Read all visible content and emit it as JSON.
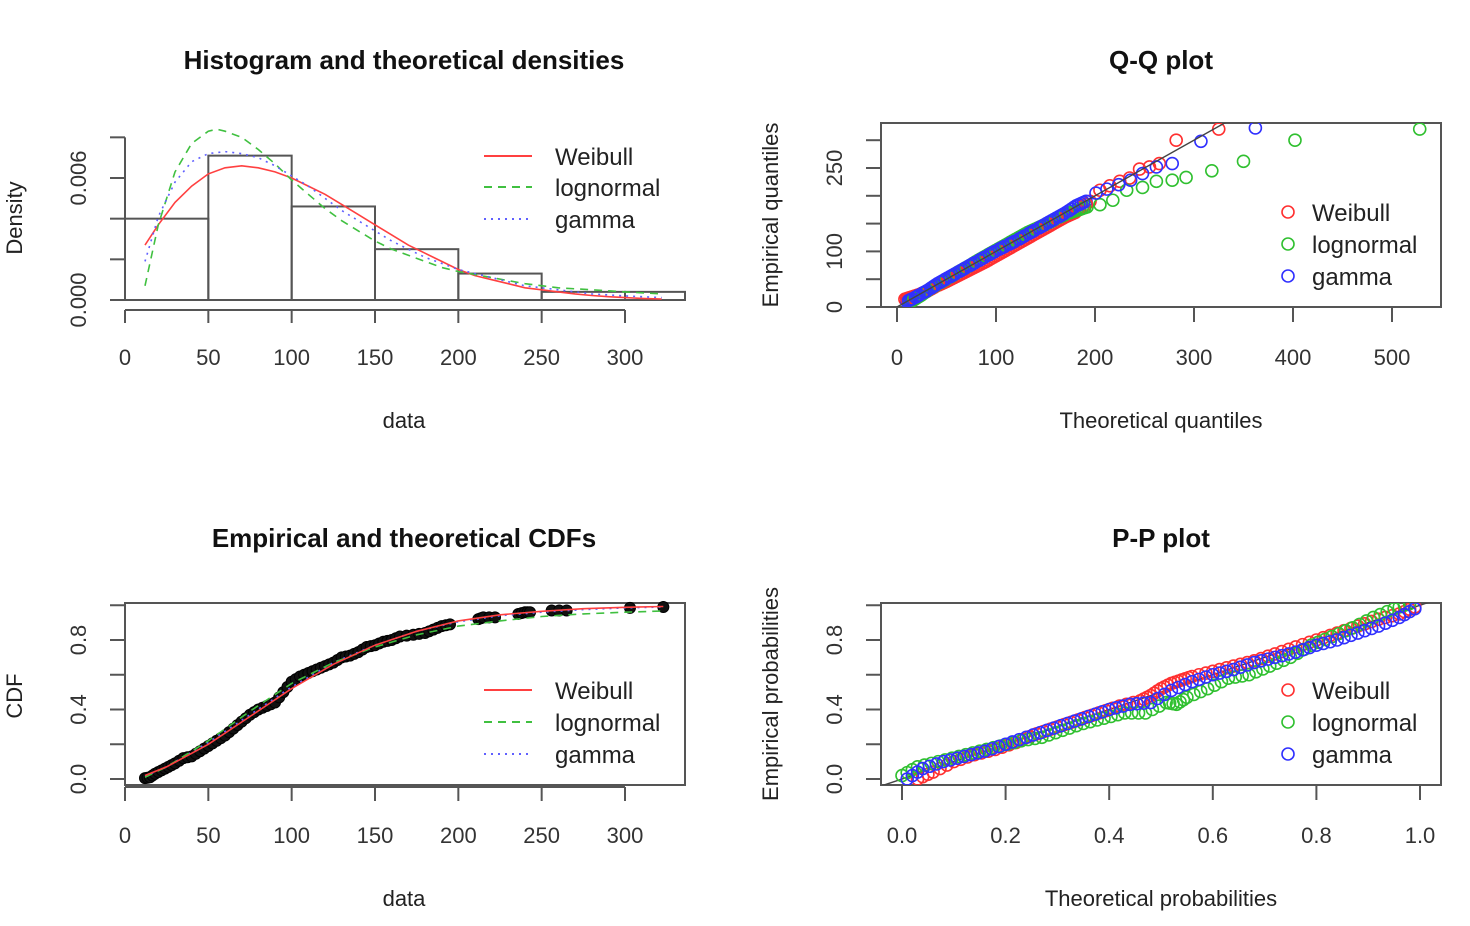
{
  "chart_data": [
    {
      "id": "hist",
      "type": "bar",
      "title": "Histogram and theoretical densities",
      "xlabel": "data",
      "ylabel": "Density",
      "xlim": [
        0,
        335
      ],
      "ylim": [
        0,
        0.008
      ],
      "xticks": [
        0,
        50,
        100,
        150,
        200,
        250,
        300
      ],
      "xtick_labels": [
        "0",
        "50",
        "100",
        "150",
        "200",
        "250",
        "300"
      ],
      "yticks": [
        0,
        0.002,
        0.004,
        0.006,
        0.008
      ],
      "ytick_labels": [
        "0.000",
        "",
        "",
        "0.006",
        ""
      ],
      "bins": [
        [
          0,
          50
        ],
        [
          50,
          100
        ],
        [
          100,
          150
        ],
        [
          150,
          200
        ],
        [
          200,
          250
        ],
        [
          250,
          300
        ],
        [
          300,
          350
        ]
      ],
      "values": [
        0.004,
        0.0071,
        0.0046,
        0.0025,
        0.0013,
        0.0004,
        0.0004
      ],
      "curves": [
        {
          "name": "Weibull",
          "color": "#ff4040",
          "style": "solid",
          "x": [
            12,
            20,
            30,
            40,
            50,
            60,
            70,
            80,
            90,
            100,
            110,
            120,
            130,
            140,
            150,
            160,
            170,
            180,
            190,
            200,
            210,
            220,
            230,
            240,
            250,
            260,
            270,
            280,
            290,
            300,
            310,
            322
          ],
          "y": [
            0.0027,
            0.0037,
            0.0048,
            0.0056,
            0.0062,
            0.0065,
            0.0066,
            0.0065,
            0.0063,
            0.006,
            0.0056,
            0.0052,
            0.0047,
            0.0042,
            0.0037,
            0.0032,
            0.0027,
            0.0023,
            0.0019,
            0.0015,
            0.0012,
            0.001,
            0.0008,
            0.0006,
            0.0005,
            0.0004,
            0.0003,
            0.00022,
            0.00016,
            0.00012,
            8e-05,
            5e-05
          ]
        },
        {
          "name": "lognormal",
          "color": "#40c040",
          "style": "dashed",
          "x": [
            12,
            20,
            30,
            40,
            50,
            55,
            60,
            70,
            80,
            90,
            100,
            110,
            120,
            130,
            140,
            150,
            160,
            170,
            180,
            190,
            200,
            220,
            240,
            260,
            280,
            300,
            322
          ],
          "y": [
            0.0007,
            0.0037,
            0.0063,
            0.0077,
            0.0083,
            0.0084,
            0.0083,
            0.008,
            0.0074,
            0.0067,
            0.0059,
            0.0052,
            0.0045,
            0.0039,
            0.0034,
            0.0029,
            0.0025,
            0.0022,
            0.0019,
            0.0016,
            0.0014,
            0.0011,
            0.0008,
            0.0006,
            0.0005,
            0.0004,
            0.0003
          ]
        },
        {
          "name": "gamma",
          "color": "#6060ff",
          "style": "dotted",
          "x": [
            12,
            20,
            30,
            40,
            50,
            60,
            70,
            80,
            90,
            100,
            110,
            120,
            130,
            140,
            150,
            160,
            170,
            180,
            190,
            200,
            220,
            240,
            260,
            280,
            300,
            322
          ],
          "y": [
            0.0019,
            0.0041,
            0.0058,
            0.0068,
            0.0072,
            0.0073,
            0.0072,
            0.007,
            0.0066,
            0.0061,
            0.0056,
            0.005,
            0.0044,
            0.0039,
            0.0034,
            0.0029,
            0.0025,
            0.0021,
            0.0018,
            0.0015,
            0.0011,
            0.0007,
            0.0005,
            0.0003,
            0.0002,
            0.00012
          ]
        }
      ],
      "legend": {
        "position": "top-right",
        "entries": [
          "Weibull",
          "lognormal",
          "gamma"
        ]
      }
    },
    {
      "id": "qq",
      "type": "scatter",
      "title": "Q-Q plot",
      "xlabel": "Theoretical quantiles",
      "ylabel": "Empirical quantiles",
      "xlim": [
        -8,
        550
      ],
      "ylim": [
        0,
        330
      ],
      "xticks": [
        0,
        100,
        200,
        300,
        400,
        500
      ],
      "xtick_labels": [
        "0",
        "100",
        "200",
        "300",
        "400",
        "500"
      ],
      "yticks": [
        0,
        50,
        100,
        150,
        200,
        250,
        300
      ],
      "ytick_labels": [
        "0",
        "",
        "100",
        "",
        "",
        "250",
        ""
      ],
      "reference_line": "y = x",
      "series": [
        {
          "name": "Weibull",
          "color": "#ff3030",
          "x": [
            8,
            15,
            22,
            30,
            40,
            50,
            60,
            70,
            80,
            90,
            100,
            110,
            120,
            130,
            140,
            150,
            160,
            170,
            180,
            195,
            205,
            215,
            225,
            235,
            245,
            255,
            265,
            282,
            325
          ],
          "y": [
            14,
            18,
            22,
            28,
            38,
            46,
            55,
            64,
            73,
            82,
            92,
            102,
            112,
            122,
            132,
            142,
            152,
            162,
            170,
            190,
            210,
            218,
            226,
            232,
            248,
            252,
            258,
            300,
            320
          ]
        },
        {
          "name": "lognormal",
          "color": "#30c030",
          "x": [
            12,
            18,
            25,
            33,
            42,
            52,
            62,
            72,
            82,
            92,
            102,
            112,
            122,
            132,
            142,
            152,
            162,
            172,
            182,
            192,
            205,
            218,
            232,
            248,
            262,
            278,
            292,
            318,
            350,
            402,
            528
          ],
          "y": [
            8,
            14,
            22,
            32,
            42,
            52,
            63,
            73,
            84,
            94,
            104,
            114,
            124,
            134,
            142,
            150,
            160,
            168,
            174,
            180,
            184,
            192,
            210,
            215,
            226,
            228,
            233,
            245,
            262,
            300,
            320
          ]
        },
        {
          "name": "gamma",
          "color": "#3030ff",
          "x": [
            10,
            17,
            24,
            32,
            41,
            51,
            61,
            71,
            81,
            91,
            101,
            111,
            121,
            131,
            141,
            151,
            161,
            171,
            181,
            191,
            201,
            212,
            224,
            236,
            248,
            262,
            278,
            307,
            362
          ],
          "y": [
            10,
            16,
            23,
            31,
            42,
            52,
            62,
            72,
            82,
            92,
            102,
            111,
            120,
            130,
            140,
            150,
            160,
            170,
            182,
            190,
            205,
            212,
            220,
            228,
            240,
            252,
            258,
            298,
            322
          ]
        }
      ],
      "legend": {
        "position": "right",
        "entries": [
          "Weibull",
          "lognormal",
          "gamma"
        ]
      }
    },
    {
      "id": "cdf",
      "type": "line",
      "title": "Empirical and theoretical CDFs",
      "xlabel": "data",
      "ylabel": "CDF",
      "xlim": [
        0,
        335
      ],
      "ylim": [
        -0.02,
        1.02
      ],
      "xticks": [
        0,
        50,
        100,
        150,
        200,
        250,
        300
      ],
      "xtick_labels": [
        "0",
        "50",
        "100",
        "150",
        "200",
        "250",
        "300"
      ],
      "yticks": [
        0,
        0.2,
        0.4,
        0.6,
        0.8,
        1.0
      ],
      "ytick_labels": [
        "0.0",
        "",
        "0.4",
        "",
        "0.8",
        ""
      ],
      "empirical": {
        "x": [
          12,
          15,
          18,
          22,
          26,
          30,
          35,
          40,
          45,
          50,
          55,
          60,
          65,
          70,
          75,
          80,
          85,
          90,
          95,
          100,
          105,
          110,
          115,
          120,
          125,
          130,
          135,
          140,
          145,
          150,
          155,
          160,
          165,
          173,
          180,
          185,
          190,
          195,
          212,
          215,
          222,
          236,
          240,
          243,
          256,
          265,
          303,
          323
        ],
        "y": [
          0.005,
          0.01,
          0.03,
          0.05,
          0.07,
          0.09,
          0.12,
          0.13,
          0.16,
          0.19,
          0.22,
          0.25,
          0.29,
          0.33,
          0.37,
          0.4,
          0.42,
          0.44,
          0.5,
          0.56,
          0.59,
          0.61,
          0.63,
          0.65,
          0.67,
          0.7,
          0.71,
          0.73,
          0.76,
          0.77,
          0.79,
          0.8,
          0.82,
          0.83,
          0.84,
          0.86,
          0.88,
          0.89,
          0.92,
          0.93,
          0.93,
          0.95,
          0.96,
          0.96,
          0.97,
          0.97,
          0.985,
          0.99
        ]
      },
      "curves": [
        {
          "name": "Weibull",
          "color": "#ff4040",
          "style": "solid",
          "x": [
            12,
            25,
            50,
            75,
            100,
            125,
            150,
            175,
            200,
            225,
            250,
            275,
            300,
            323
          ],
          "y": [
            0.02,
            0.07,
            0.2,
            0.36,
            0.52,
            0.66,
            0.77,
            0.85,
            0.91,
            0.945,
            0.965,
            0.98,
            0.988,
            0.993
          ]
        },
        {
          "name": "lognormal",
          "color": "#40c040",
          "style": "dashed",
          "x": [
            12,
            25,
            50,
            75,
            100,
            125,
            150,
            175,
            200,
            225,
            250,
            275,
            300,
            323
          ],
          "y": [
            0.01,
            0.07,
            0.22,
            0.39,
            0.55,
            0.67,
            0.76,
            0.83,
            0.88,
            0.91,
            0.935,
            0.95,
            0.96,
            0.967
          ]
        },
        {
          "name": "gamma",
          "color": "#6060ff",
          "style": "dotted",
          "x": [
            12,
            25,
            50,
            75,
            100,
            125,
            150,
            175,
            200,
            225,
            250,
            275,
            300,
            323
          ],
          "y": [
            0.015,
            0.07,
            0.21,
            0.37,
            0.53,
            0.67,
            0.77,
            0.85,
            0.905,
            0.94,
            0.96,
            0.975,
            0.985,
            0.99
          ]
        }
      ],
      "legend": {
        "position": "bottom-right",
        "entries": [
          "Weibull",
          "lognormal",
          "gamma"
        ]
      }
    },
    {
      "id": "pp",
      "type": "scatter",
      "title": "P-P plot",
      "xlabel": "Theoretical probabilities",
      "ylabel": "Empirical probabilities",
      "xlim": [
        -0.04,
        1.04
      ],
      "ylim": [
        -0.02,
        1.02
      ],
      "xticks": [
        0,
        0.2,
        0.4,
        0.6,
        0.8,
        1.0
      ],
      "xtick_labels": [
        "0.0",
        "0.2",
        "0.4",
        "0.6",
        "0.8",
        "1.0"
      ],
      "yticks": [
        0,
        0.2,
        0.4,
        0.6,
        0.8,
        1.0
      ],
      "ytick_labels": [
        "0.0",
        "",
        "0.4",
        "",
        "0.8",
        ""
      ],
      "reference_line": "y = x",
      "series": [
        {
          "name": "Weibull",
          "color": "#ff3030",
          "x": [
            0.03,
            0.06,
            0.1,
            0.14,
            0.18,
            0.22,
            0.26,
            0.3,
            0.34,
            0.38,
            0.42,
            0.46,
            0.48,
            0.5,
            0.52,
            0.54,
            0.56,
            0.6,
            0.64,
            0.68,
            0.72,
            0.76,
            0.8,
            0.84,
            0.88,
            0.92,
            0.96,
            0.99
          ],
          "y": [
            0.0,
            0.04,
            0.1,
            0.14,
            0.17,
            0.21,
            0.26,
            0.3,
            0.34,
            0.38,
            0.42,
            0.45,
            0.48,
            0.52,
            0.55,
            0.57,
            0.59,
            0.62,
            0.65,
            0.68,
            0.72,
            0.76,
            0.8,
            0.84,
            0.88,
            0.92,
            0.95,
            0.99
          ]
        },
        {
          "name": "lognormal",
          "color": "#30c030",
          "x": [
            0.0,
            0.03,
            0.07,
            0.11,
            0.15,
            0.19,
            0.23,
            0.27,
            0.31,
            0.35,
            0.39,
            0.43,
            0.47,
            0.51,
            0.53,
            0.55,
            0.59,
            0.63,
            0.67,
            0.71,
            0.75,
            0.79,
            0.83,
            0.87,
            0.91,
            0.95,
            0.98
          ],
          "y": [
            0.02,
            0.07,
            0.1,
            0.13,
            0.16,
            0.19,
            0.22,
            0.24,
            0.28,
            0.32,
            0.35,
            0.38,
            0.38,
            0.44,
            0.43,
            0.47,
            0.52,
            0.58,
            0.6,
            0.65,
            0.7,
            0.77,
            0.82,
            0.87,
            0.93,
            0.98,
            1.01
          ]
        },
        {
          "name": "gamma",
          "color": "#3030ff",
          "x": [
            0.01,
            0.04,
            0.08,
            0.12,
            0.16,
            0.2,
            0.24,
            0.28,
            0.32,
            0.36,
            0.4,
            0.44,
            0.48,
            0.52,
            0.56,
            0.6,
            0.64,
            0.68,
            0.72,
            0.76,
            0.8,
            0.84,
            0.88,
            0.92,
            0.96,
            0.99
          ],
          "y": [
            0.0,
            0.06,
            0.1,
            0.13,
            0.16,
            0.2,
            0.24,
            0.28,
            0.32,
            0.36,
            0.4,
            0.43,
            0.44,
            0.51,
            0.56,
            0.6,
            0.63,
            0.67,
            0.7,
            0.73,
            0.77,
            0.8,
            0.84,
            0.88,
            0.93,
            0.98
          ]
        }
      ],
      "legend": {
        "position": "right",
        "entries": [
          "Weibull",
          "lognormal",
          "gamma"
        ]
      }
    }
  ]
}
